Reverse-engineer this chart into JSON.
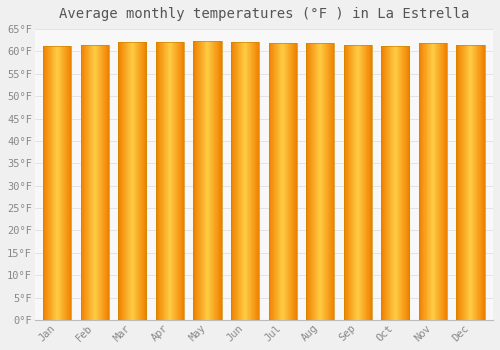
{
  "title": "Average monthly temperatures (°F ) in La Estrella",
  "months": [
    "Jan",
    "Feb",
    "Mar",
    "Apr",
    "May",
    "Jun",
    "Jul",
    "Aug",
    "Sep",
    "Oct",
    "Nov",
    "Dec"
  ],
  "values": [
    61.3,
    61.5,
    62.1,
    62.2,
    62.3,
    62.2,
    61.9,
    61.8,
    61.5,
    61.2,
    61.9,
    61.4
  ],
  "ylim": [
    0,
    65
  ],
  "yticks": [
    0,
    5,
    10,
    15,
    20,
    25,
    30,
    35,
    40,
    45,
    50,
    55,
    60,
    65
  ],
  "ytick_labels": [
    "0°F",
    "5°F",
    "10°F",
    "15°F",
    "20°F",
    "25°F",
    "30°F",
    "35°F",
    "40°F",
    "45°F",
    "50°F",
    "55°F",
    "60°F",
    "65°F"
  ],
  "bar_color_center": "#FFCC44",
  "bar_color_edge": "#F08000",
  "bar_edge_color": "#CC8800",
  "background_color": "#F0F0F0",
  "plot_bg_color": "#F8F8F8",
  "grid_color": "#E0E0E0",
  "title_fontsize": 10,
  "tick_fontsize": 7.5,
  "title_color": "#555555",
  "tick_color": "#888888",
  "bar_width": 0.75,
  "n_gradient_steps": 50
}
